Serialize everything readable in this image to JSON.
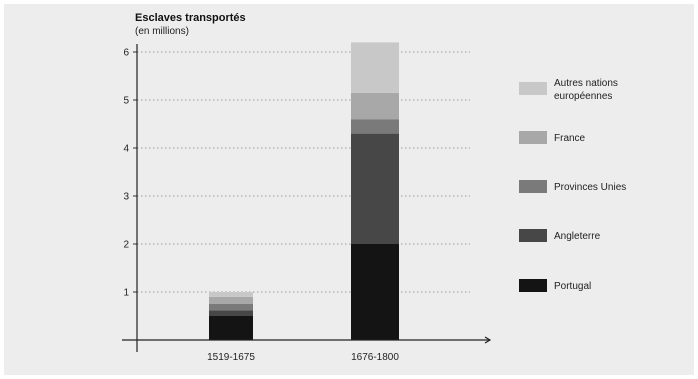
{
  "chart_data": {
    "type": "bar",
    "stacked": true,
    "ylabel": "Esclaves transportés",
    "ylabel_sub": "(en millions)",
    "categories": [
      "1519-1675",
      "1676-1800"
    ],
    "yticks": [
      "1",
      "2",
      "3",
      "4",
      "5",
      "6"
    ],
    "ylim": [
      0,
      6.3
    ],
    "grid": "horizontal dotted",
    "legend_position": "right",
    "series": [
      {
        "name": "Portugal",
        "values": [
          0.5,
          2.0
        ],
        "color": "#141414"
      },
      {
        "name": "Angleterre",
        "values": [
          0.12,
          2.3
        ],
        "color": "#474747"
      },
      {
        "name": "Provinces Unies",
        "values": [
          0.13,
          0.3
        ],
        "color": "#7a7a7a"
      },
      {
        "name": "France",
        "values": [
          0.15,
          0.55
        ],
        "color": "#a8a8a8"
      },
      {
        "name": "Autres nations européennes",
        "values": [
          0.1,
          1.05
        ],
        "color": "#c8c8c8"
      }
    ],
    "legend_lines": [
      [
        "Autres nations",
        "européennes"
      ],
      [
        "France"
      ],
      [
        "Provinces Unies"
      ],
      [
        "Angleterre"
      ],
      [
        "Portugal"
      ]
    ]
  }
}
